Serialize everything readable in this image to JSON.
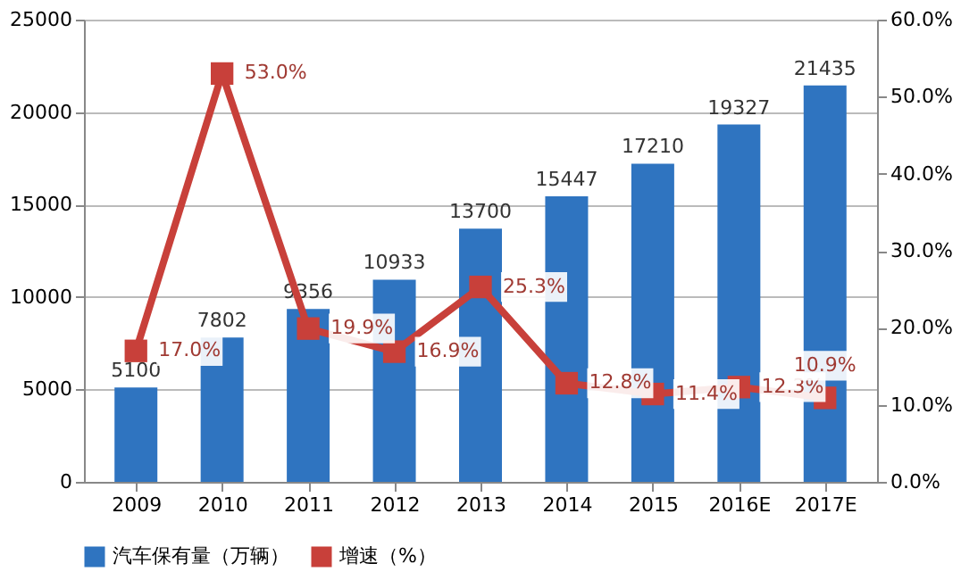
{
  "chart_data": {
    "type": "bar",
    "categories": [
      "2009",
      "2010",
      "2011",
      "2012",
      "2013",
      "2014",
      "2015",
      "2016E",
      "2017E"
    ],
    "series": [
      {
        "name": "汽车保有量（万辆）",
        "color": "#2f74c0",
        "values": [
          5100,
          7802,
          9356,
          10933,
          13700,
          15447,
          17210,
          19327,
          21435
        ],
        "value_labels": [
          "5100",
          "7802",
          "9356",
          "10933",
          "13700",
          "15447",
          "17210",
          "19327",
          "21435"
        ]
      },
      {
        "name": "增速（%）",
        "type": "line",
        "axis": "y2",
        "color": "#c8403a",
        "marker": "square",
        "values": [
          17.0,
          53.0,
          19.9,
          16.9,
          25.3,
          12.8,
          11.4,
          12.3,
          10.9
        ],
        "value_labels": [
          "17.0%",
          "53.0%",
          "19.9%",
          "16.9%",
          "25.3%",
          "12.8%",
          "11.4%",
          "12.3%",
          "10.9%"
        ]
      }
    ],
    "ylim": [
      0,
      25000
    ],
    "yticks": [
      0,
      5000,
      10000,
      15000,
      20000,
      25000
    ],
    "y2lim": [
      0,
      60
    ],
    "y2ticks": [
      {
        "value": 0,
        "label": "0.0%"
      },
      {
        "value": 10,
        "label": "10.0%"
      },
      {
        "value": 20,
        "label": "20.0%"
      },
      {
        "value": 30,
        "label": "30.0%"
      },
      {
        "value": 40,
        "label": "40.0%"
      },
      {
        "value": 50,
        "label": "50.0%"
      },
      {
        "value": 60,
        "label": "60.0%"
      }
    ],
    "grid": "y",
    "legend": "bottom"
  }
}
